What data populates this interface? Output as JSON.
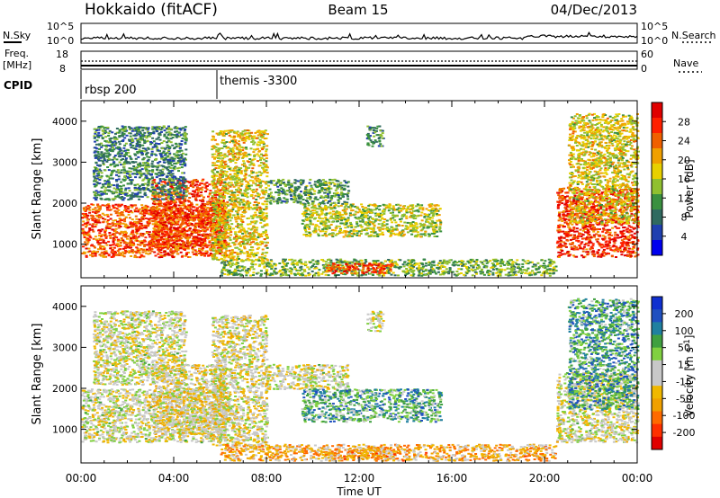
{
  "header": {
    "station": "Hokkaido (fitACF)",
    "beam": "Beam 15",
    "date": "04/Dec/2013"
  },
  "strip_panels": {
    "nsky_label": "N.Sky",
    "nsearch_label": "N.Search",
    "nsky_ticks": [
      "10^5",
      "10^0"
    ],
    "nsearch_ticks": [
      "10^5",
      "10^0"
    ],
    "freq_label": "Freq.",
    "freq_unit": "[MHz]",
    "freq_ticks": [
      "18",
      "8"
    ],
    "nave_label": "Nave",
    "nave_ticks": [
      "60",
      "0"
    ],
    "cpid_label": "CPID",
    "cpid_segments": [
      {
        "label": "rbsp 200",
        "start_hour": 0
      },
      {
        "label": "themis -3300",
        "start_hour": 6.0
      }
    ]
  },
  "chart_data": [
    {
      "type": "heatmap",
      "name": "power-panel",
      "xlabel": "Time UT",
      "ylabel": "Slant Range [km]",
      "xlim": [
        0,
        24
      ],
      "ylim": [
        180,
        4500
      ],
      "xticks": [
        "00:00",
        "04:00",
        "08:00",
        "12:00",
        "16:00",
        "20:00",
        "00:00"
      ],
      "yticks": [
        1000,
        2000,
        3000,
        4000
      ],
      "colorbar": {
        "label": "Power [dB]",
        "ticks": [
          28,
          24,
          20,
          16,
          12,
          8,
          4
        ],
        "range": [
          0,
          30
        ],
        "colors": [
          "#0000ee",
          "#2040b0",
          "#306a60",
          "#3a9040",
          "#90c030",
          "#e8d000",
          "#f0a000",
          "#f06000",
          "#ff2000",
          "#e00000"
        ]
      },
      "regions": [
        {
          "t0": 0.0,
          "t1": 6.2,
          "r0": 700,
          "r1": 2000,
          "level": 0.78
        },
        {
          "t0": 3.0,
          "t1": 6.2,
          "r0": 900,
          "r1": 2600,
          "level": 0.82
        },
        {
          "t0": 5.6,
          "t1": 8.0,
          "r0": 600,
          "r1": 3800,
          "level": 0.55
        },
        {
          "t0": 0.5,
          "t1": 4.5,
          "r0": 2100,
          "r1": 3900,
          "level": 0.3
        },
        {
          "t0": 8.0,
          "t1": 11.5,
          "r0": 2000,
          "r1": 2600,
          "level": 0.35
        },
        {
          "t0": 9.5,
          "t1": 15.5,
          "r0": 1200,
          "r1": 2000,
          "level": 0.5
        },
        {
          "t0": 12.3,
          "t1": 13.0,
          "r0": 3400,
          "r1": 3900,
          "level": 0.3
        },
        {
          "t0": 6.0,
          "t1": 20.5,
          "r0": 250,
          "r1": 650,
          "level": 0.42
        },
        {
          "t0": 10.5,
          "t1": 13.5,
          "r0": 300,
          "r1": 550,
          "level": 0.8
        },
        {
          "t0": 20.5,
          "t1": 24.0,
          "r0": 700,
          "r1": 2400,
          "level": 0.85
        },
        {
          "t0": 21.0,
          "t1": 24.0,
          "r0": 1500,
          "r1": 4200,
          "level": 0.55
        }
      ]
    },
    {
      "type": "heatmap",
      "name": "velocity-panel",
      "xlabel": "Time UT",
      "ylabel": "Slant Range [km]",
      "xlim": [
        0,
        24
      ],
      "ylim": [
        180,
        4500
      ],
      "xticks": [
        "00:00",
        "04:00",
        "08:00",
        "12:00",
        "16:00",
        "20:00",
        "00:00"
      ],
      "yticks": [
        1000,
        2000,
        3000,
        4000
      ],
      "colorbar": {
        "label": "Velocity [m s^-1]",
        "ticks": [
          200,
          100,
          50,
          15,
          -15,
          -50,
          -100,
          -200
        ],
        "range": [
          -250,
          250
        ],
        "colors": [
          "#e00000",
          "#ff3000",
          "#ff6a00",
          "#f0a000",
          "#f0b800",
          "#c8c8c8",
          "#c8c8c8",
          "#80d040",
          "#40a040",
          "#2080a0",
          "#2050c0",
          "#1030d0"
        ]
      },
      "regions": [
        {
          "t0": 0.0,
          "t1": 6.2,
          "r0": 700,
          "r1": 2000,
          "level": 0.5
        },
        {
          "t0": 3.0,
          "t1": 6.2,
          "r0": 900,
          "r1": 2600,
          "level": 0.45
        },
        {
          "t0": 5.6,
          "t1": 8.0,
          "r0": 600,
          "r1": 3800,
          "level": 0.48
        },
        {
          "t0": 0.5,
          "t1": 4.5,
          "r0": 2100,
          "r1": 3900,
          "level": 0.5
        },
        {
          "t0": 8.0,
          "t1": 11.5,
          "r0": 2000,
          "r1": 2600,
          "level": 0.5
        },
        {
          "t0": 9.5,
          "t1": 15.5,
          "r0": 1200,
          "r1": 2000,
          "level": 0.7
        },
        {
          "t0": 12.3,
          "t1": 13.0,
          "r0": 3400,
          "r1": 3900,
          "level": 0.5
        },
        {
          "t0": 6.0,
          "t1": 20.5,
          "r0": 250,
          "r1": 650,
          "level": 0.34
        },
        {
          "t0": 10.5,
          "t1": 13.5,
          "r0": 300,
          "r1": 550,
          "level": 0.32
        },
        {
          "t0": 20.5,
          "t1": 24.0,
          "r0": 700,
          "r1": 2400,
          "level": 0.5
        },
        {
          "t0": 21.0,
          "t1": 24.0,
          "r0": 1500,
          "r1": 4200,
          "level": 0.72
        }
      ]
    }
  ]
}
